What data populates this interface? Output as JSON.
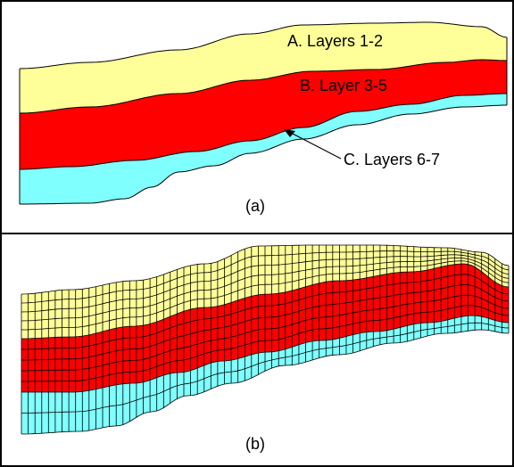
{
  "panel_a": {
    "label_a": "A. Layers 1-2",
    "label_b": "B. Layer 3-5",
    "label_c": "C. Layers 6-7",
    "caption": "(a)"
  },
  "panel_b": {
    "caption": "(b)"
  },
  "colors": {
    "yellow_layer": "#FFFF99",
    "red_layer": "#FF0000",
    "cyan_layer": "#80FFFF",
    "outline": "#000000"
  }
}
